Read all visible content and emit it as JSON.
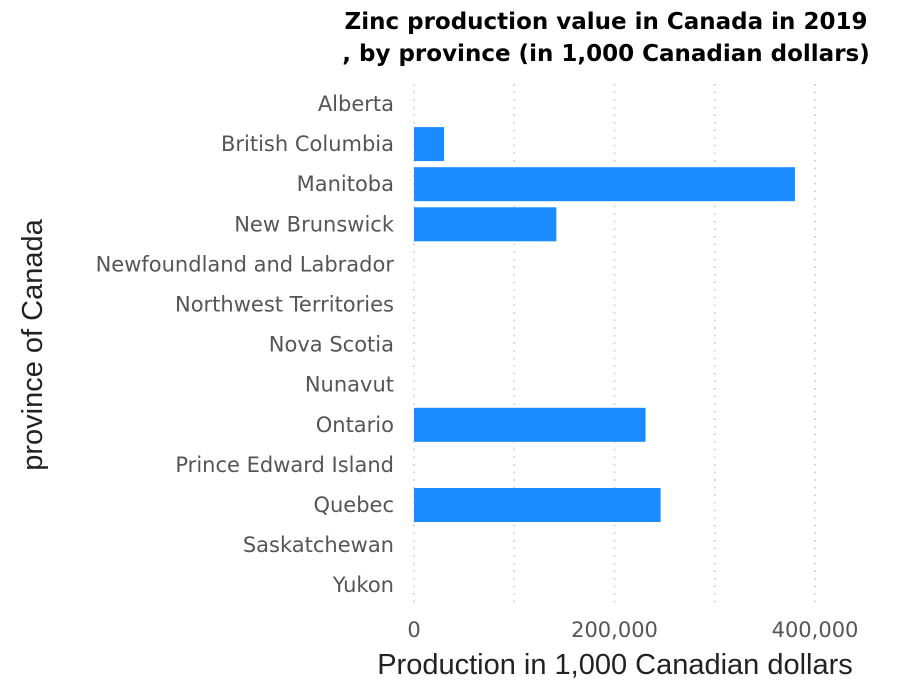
{
  "chart_data": {
    "type": "bar",
    "orientation": "horizontal",
    "title_lines": [
      "Zinc production value in Canada in 2019",
      ", by province (in 1,000 Canadian dollars)"
    ],
    "xlabel": "Production in 1,000 Canadian dollars",
    "ylabel": "province of Canada",
    "categories": [
      "Alberta",
      "British Columbia",
      "Manitoba",
      "New Brunswick",
      "Newfoundland and Labrador",
      "Northwest Territories",
      "Nova Scotia",
      "Nunavut",
      "Ontario",
      "Prince Edward Island",
      "Quebec",
      "Saskatchewan",
      "Yukon"
    ],
    "values": [
      0,
      30000,
      380000,
      142000,
      0,
      0,
      0,
      0,
      231000,
      0,
      246000,
      0,
      0
    ],
    "xlim": [
      0,
      400000
    ],
    "xticks": [
      0,
      200000,
      400000
    ],
    "xtick_labels": [
      "0",
      "200,000",
      "400,000"
    ],
    "grid": "vertical dotted",
    "bar_color": "#1a8cff"
  }
}
